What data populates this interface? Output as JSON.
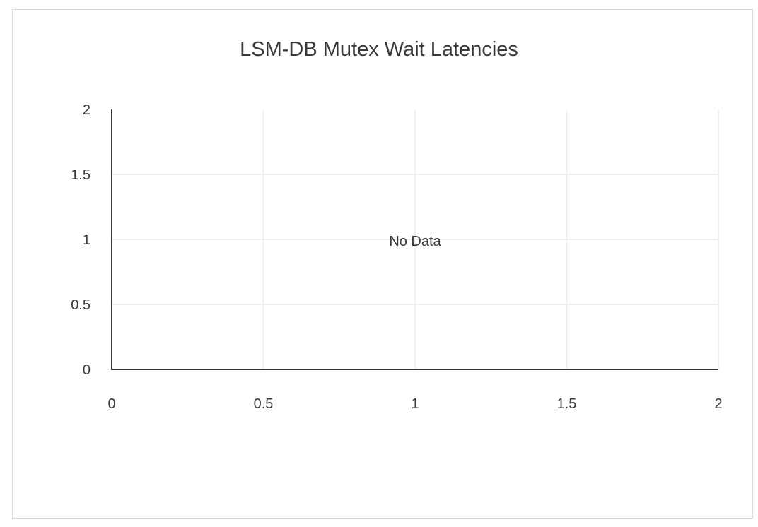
{
  "chart_data": {
    "type": "scatter",
    "title": "LSM-DB Mutex Wait Latencies",
    "xlabel": "",
    "ylabel": "",
    "xlim": [
      0,
      2
    ],
    "ylim": [
      0,
      2
    ],
    "x_ticks": [
      "0",
      "0.5",
      "1",
      "1.5",
      "2"
    ],
    "y_ticks": [
      "0",
      "0.5",
      "1",
      "1.5",
      "2"
    ],
    "grid": true,
    "series": [],
    "empty_message": "No Data",
    "colors": {
      "axis": "#3a3a3a",
      "grid": "#ebebeb",
      "border": "#d9d9d9"
    }
  }
}
